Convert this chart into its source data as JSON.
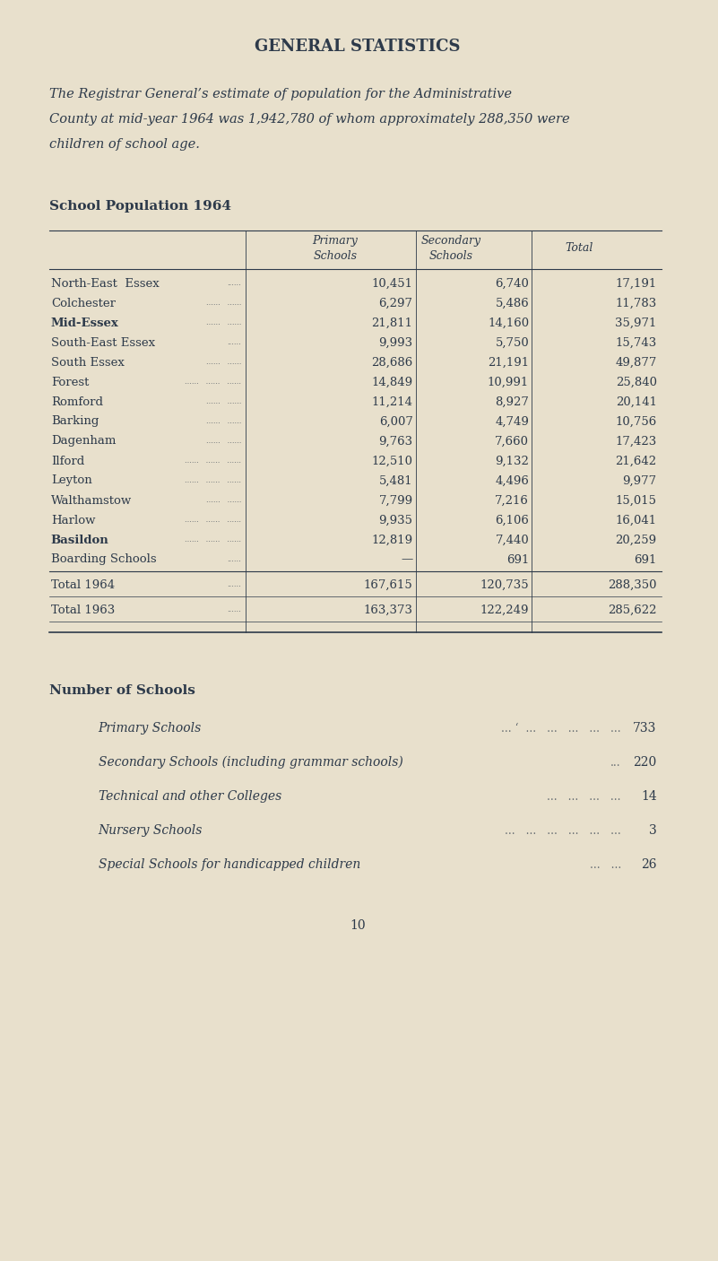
{
  "bg_color": "#e8e0cc",
  "text_color": "#2d3a4a",
  "title": "GENERAL STATISTICS",
  "intro_lines": [
    "The Registrar General’s estimate of population for the Administrative",
    "County at mid-year 1964 was 1,942,780 of whom approximately 288,350 were",
    "children of school age."
  ],
  "table_title": "School Population 1964",
  "col_headers": [
    "Primary\nSchools",
    "Secondary\nSchools",
    "Total"
  ],
  "rows": [
    [
      "North-East  Essex",
      "......",
      "10,451",
      "6,740",
      "17,191",
      false
    ],
    [
      "Colchester",
      "......   ......",
      "6,297",
      "5,486",
      "11,783",
      false
    ],
    [
      "Mid-Essex",
      "......   ......",
      "21,811",
      "14,160",
      "35,971",
      true
    ],
    [
      "South-East Essex",
      "......",
      "9,993",
      "5,750",
      "15,743",
      false
    ],
    [
      "South Essex",
      "......   ......",
      "28,686",
      "21,191",
      "49,877",
      false
    ],
    [
      "Forest",
      "......   ......   ......",
      "14,849",
      "10,991",
      "25,840",
      false
    ],
    [
      "Romford",
      "......   ......",
      "11,214",
      "8,927",
      "20,141",
      false
    ],
    [
      "Barking",
      "......   ......",
      "6,007",
      "4,749",
      "10,756",
      false
    ],
    [
      "Dagenham",
      "......   ......",
      "9,763",
      "7,660",
      "17,423",
      false
    ],
    [
      "Ilford",
      "......   ......   ......",
      "12,510",
      "9,132",
      "21,642",
      false
    ],
    [
      "Leyton",
      "......   ......   ......",
      "5,481",
      "4,496",
      "9,977",
      false
    ],
    [
      "Walthamstow",
      "......   ......",
      "7,799",
      "7,216",
      "15,015",
      false
    ],
    [
      "Harlow",
      "......   ......   ......",
      "9,935",
      "6,106",
      "16,041",
      false
    ],
    [
      "Basildon",
      "......   ......   ......",
      "12,819",
      "7,440",
      "20,259",
      true
    ],
    [
      "Boarding Schools",
      "......",
      "—",
      "691",
      "691",
      false
    ]
  ],
  "total_rows": [
    [
      "Total 1964",
      "......",
      "167,615",
      "120,735",
      "288,350"
    ],
    [
      "Total 1963",
      "......",
      "163,373",
      "122,249",
      "285,622"
    ]
  ],
  "schools_section_title": "Number of Schools",
  "schools_items": [
    [
      "Primary Schools",
      "... ‘  ...   ...   ...   ...   ...",
      "733"
    ],
    [
      "Secondary Schools (including grammar schools)",
      "...",
      "220"
    ],
    [
      "Technical and other Colleges",
      "...   ...   ...   ...",
      "14"
    ],
    [
      "Nursery Schools",
      "...   ...   ...   ...   ...   ...",
      "3"
    ],
    [
      "Special Schools for handicapped children",
      "...   ...",
      "26"
    ]
  ],
  "page_number": "10"
}
